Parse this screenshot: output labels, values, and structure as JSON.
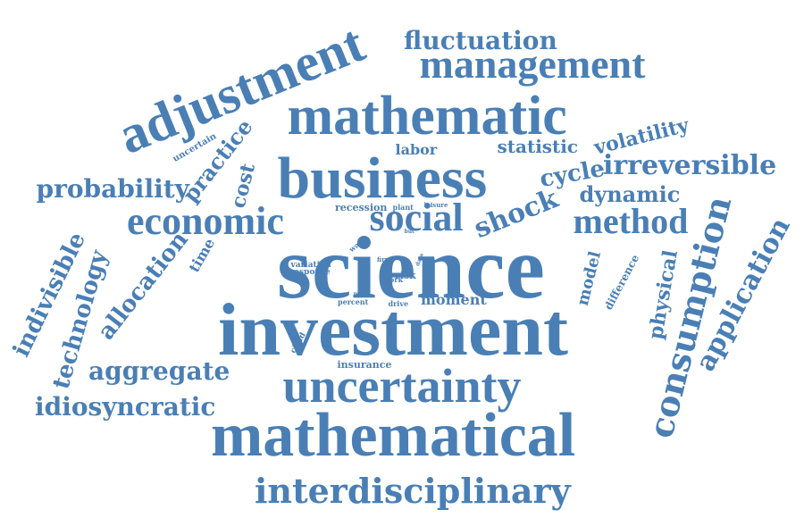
{
  "colors": {
    "word": "#4a7fb5",
    "background": "#ffffff"
  },
  "words": [
    {
      "text": "science",
      "weight": 1.0
    },
    {
      "text": "investment",
      "weight": 0.95
    },
    {
      "text": "mathematical",
      "weight": 0.88
    },
    {
      "text": "business",
      "weight": 0.8
    },
    {
      "text": "mathematic",
      "weight": 0.76
    },
    {
      "text": "adjustment",
      "weight": 0.74
    },
    {
      "text": "uncertainty",
      "weight": 0.72
    },
    {
      "text": "management",
      "weight": 0.6
    },
    {
      "text": "economic",
      "weight": 0.58
    },
    {
      "text": "social",
      "weight": 0.58
    },
    {
      "text": "consumption",
      "weight": 0.55
    },
    {
      "text": "method",
      "weight": 0.5
    },
    {
      "text": "interdisciplinary",
      "weight": 0.5
    },
    {
      "text": "application",
      "weight": 0.44
    },
    {
      "text": "shock",
      "weight": 0.4
    },
    {
      "text": "irreversible",
      "weight": 0.38
    },
    {
      "text": "probability",
      "weight": 0.38
    },
    {
      "text": "idiosyncratic",
      "weight": 0.38
    },
    {
      "text": "aggregate",
      "weight": 0.36
    },
    {
      "text": "indivisible",
      "weight": 0.36
    },
    {
      "text": "technology",
      "weight": 0.35
    },
    {
      "text": "allocation",
      "weight": 0.35
    },
    {
      "text": "practice",
      "weight": 0.34
    },
    {
      "text": "fluctuation",
      "weight": 0.33
    },
    {
      "text": "cycle",
      "weight": 0.33
    },
    {
      "text": "dynamic",
      "weight": 0.32
    },
    {
      "text": "volatility",
      "weight": 0.3
    },
    {
      "text": "physical",
      "weight": 0.3
    },
    {
      "text": "cost",
      "weight": 0.28
    },
    {
      "text": "statistic",
      "weight": 0.26
    },
    {
      "text": "model",
      "weight": 0.25
    },
    {
      "text": "moment",
      "weight": 0.24
    },
    {
      "text": "time",
      "weight": 0.22
    },
    {
      "text": "labor",
      "weight": 0.2
    },
    {
      "text": "difference",
      "weight": 0.18
    },
    {
      "text": "recession",
      "weight": 0.16
    },
    {
      "text": "insurance",
      "weight": 0.16
    },
    {
      "text": "risk",
      "weight": 0.15
    },
    {
      "text": "uncertain",
      "weight": 0.14
    },
    {
      "text": "plant",
      "weight": 0.12
    },
    {
      "text": "variation",
      "weight": 0.12
    },
    {
      "text": "response",
      "weight": 0.12
    },
    {
      "text": "child",
      "weight": 0.12
    },
    {
      "text": "drive",
      "weight": 0.11
    },
    {
      "text": "wage",
      "weight": 0.1
    },
    {
      "text": "percent",
      "weight": 0.1
    },
    {
      "text": "work",
      "weight": 0.1
    },
    {
      "text": "firm",
      "weight": 0.09
    },
    {
      "text": "leisure",
      "weight": 0.08
    },
    {
      "text": "more",
      "weight": 0.07
    },
    {
      "text": "but",
      "weight": 0.06
    },
    {
      "text": "data",
      "weight": 0.06
    }
  ]
}
